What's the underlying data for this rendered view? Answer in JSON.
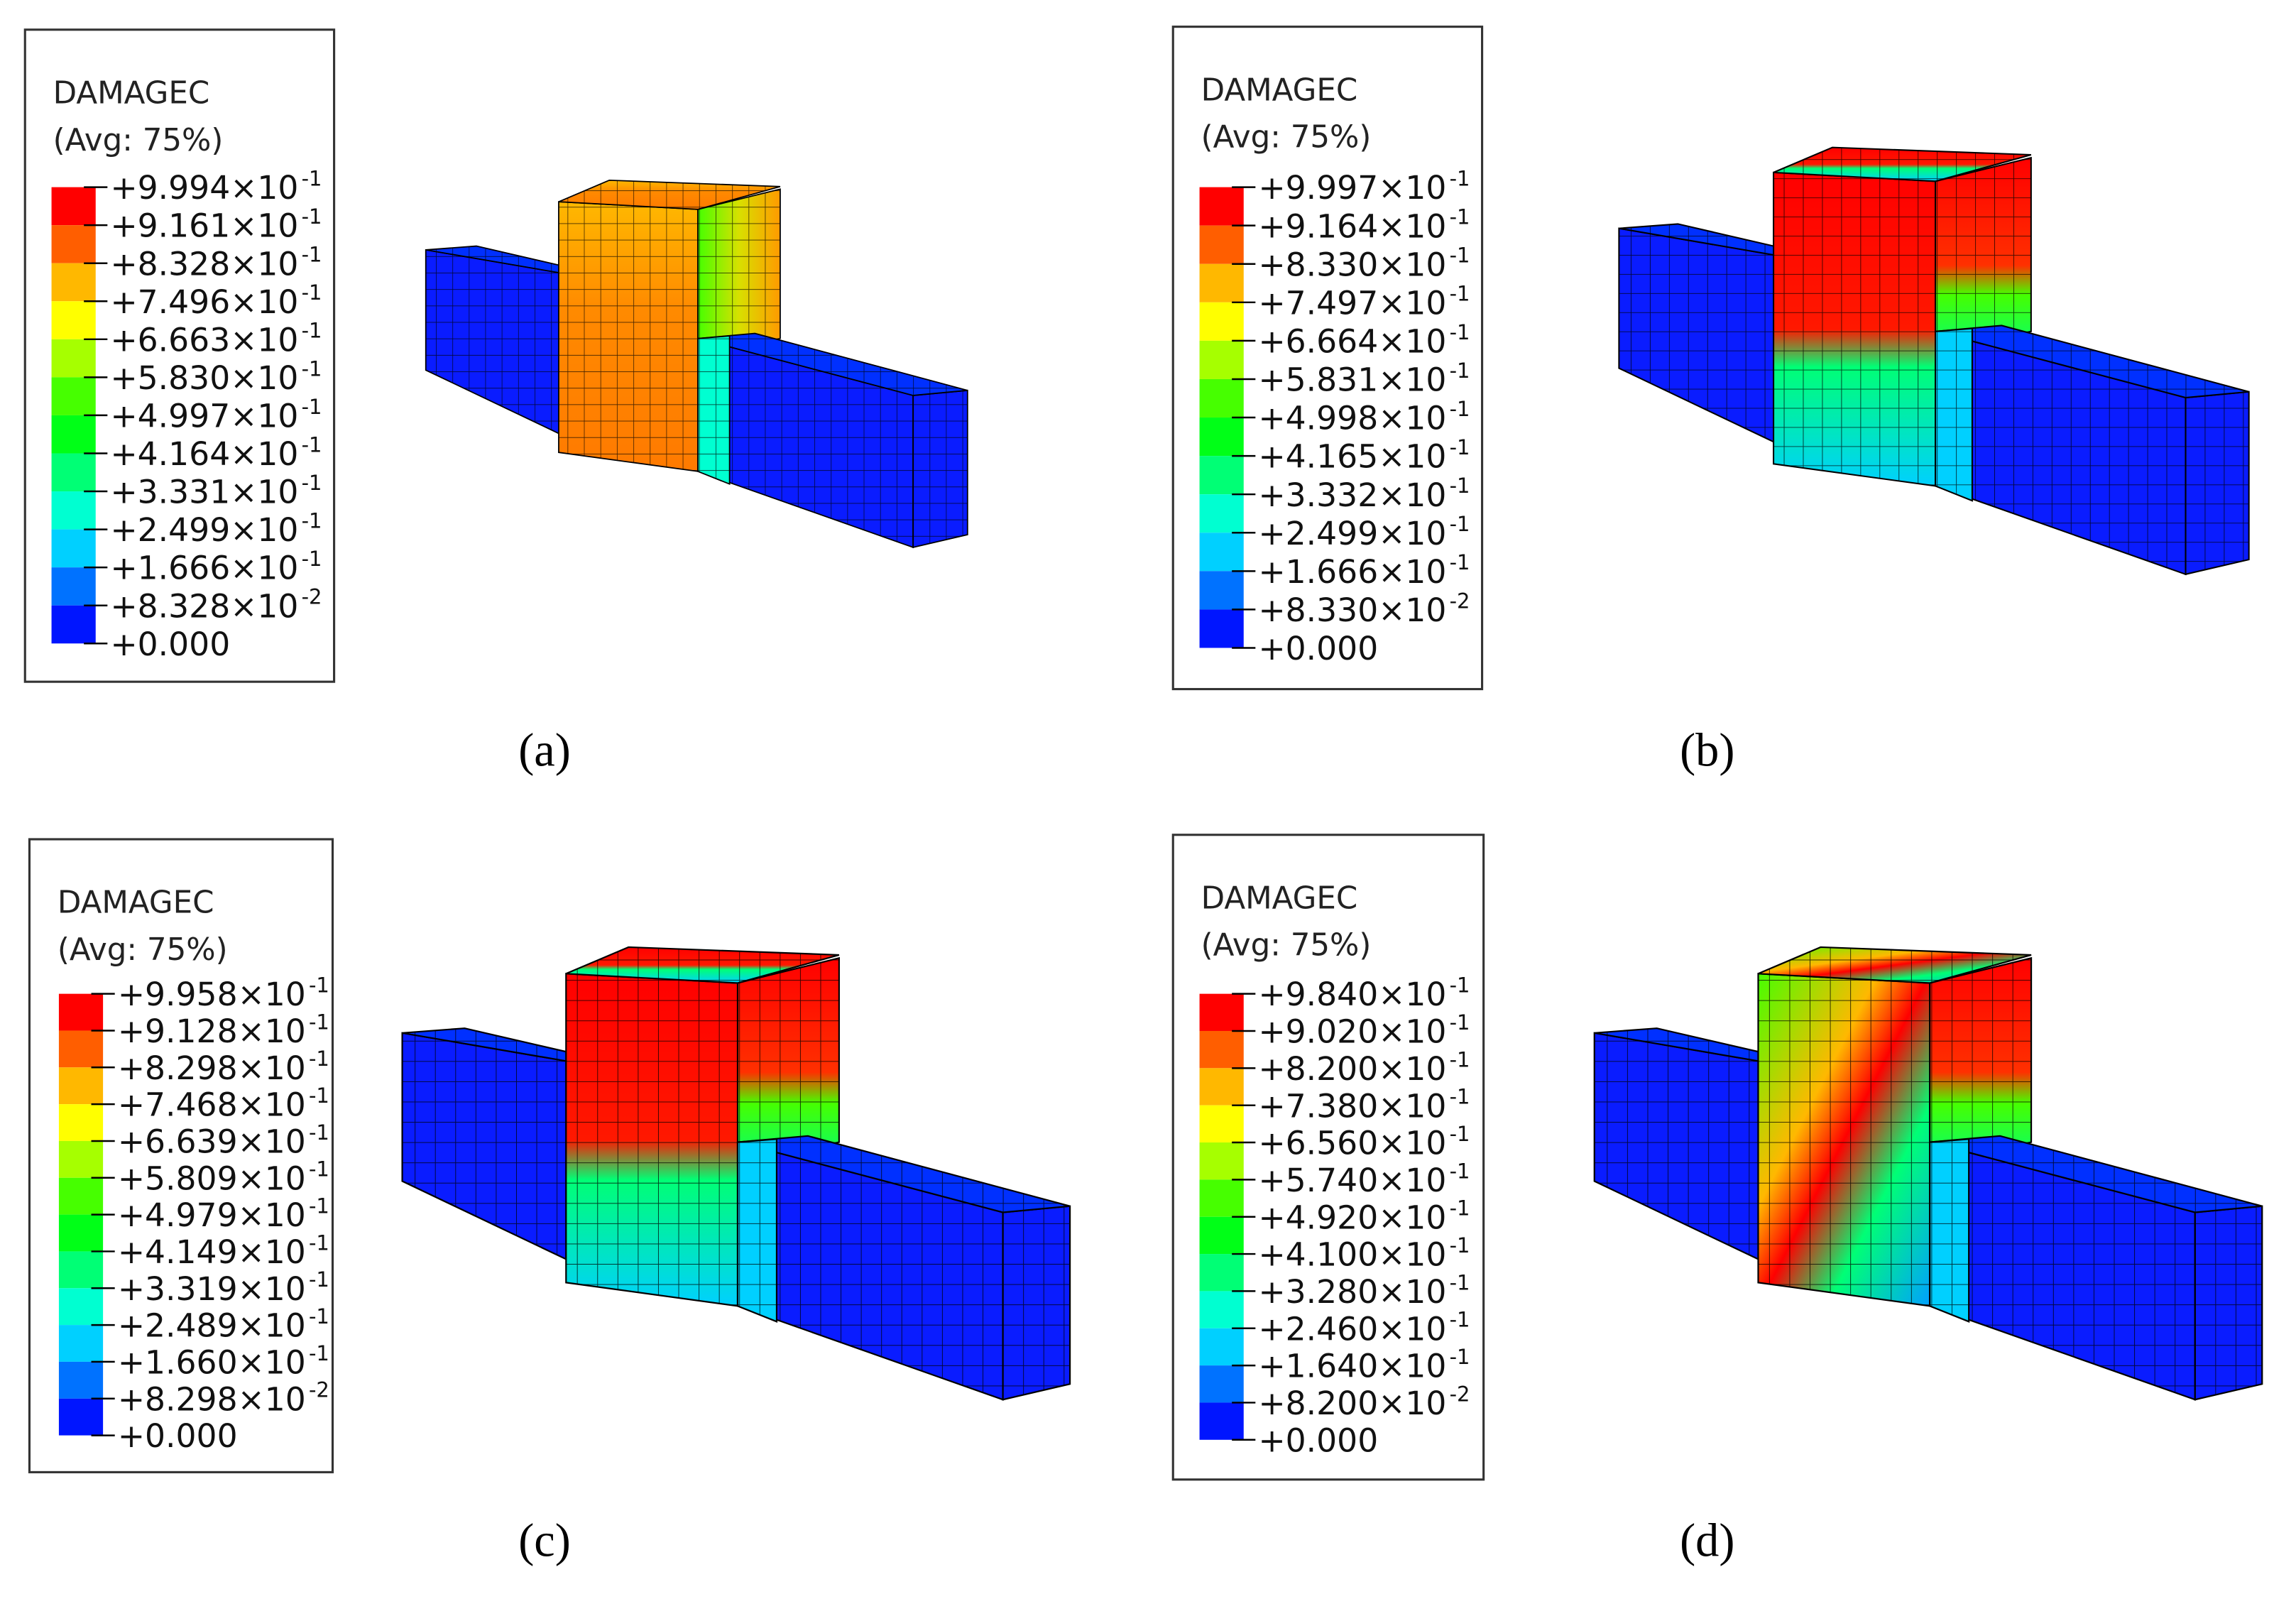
{
  "legend_colors": [
    "#ff0000",
    "#ff5e00",
    "#ffb800",
    "#ffff00",
    "#a6ff00",
    "#46ff00",
    "#00ff17",
    "#00ff75",
    "#00ffd1",
    "#00d0ff",
    "#0072ff",
    "#0015ff"
  ],
  "panels": [
    {
      "legend": {
        "title": "DAMAGEC",
        "subtitle": "(Avg: 75%)",
        "labels": [
          {
            "base": "+9.994×10",
            "exp": "-1"
          },
          {
            "base": "+9.161×10",
            "exp": "-1"
          },
          {
            "base": "+8.328×10",
            "exp": "-1"
          },
          {
            "base": "+7.496×10",
            "exp": "-1"
          },
          {
            "base": "+6.663×10",
            "exp": "-1"
          },
          {
            "base": "+5.830×10",
            "exp": "-1"
          },
          {
            "base": "+4.997×10",
            "exp": "-1"
          },
          {
            "base": "+4.164×10",
            "exp": "-1"
          },
          {
            "base": "+3.331×10",
            "exp": "-1"
          },
          {
            "base": "+2.499×10",
            "exp": "-1"
          },
          {
            "base": "+1.666×10",
            "exp": "-1"
          },
          {
            "base": "+8.328×10",
            "exp": "-2"
          },
          {
            "base": "+0.000"
          }
        ]
      },
      "caption": "(a)"
    },
    {
      "legend": {
        "title": "DAMAGEC",
        "subtitle": "(Avg: 75%)",
        "labels": [
          {
            "base": "+9.997×10",
            "exp": "-1"
          },
          {
            "base": "+9.164×10",
            "exp": "-1"
          },
          {
            "base": "+8.330×10",
            "exp": "-1"
          },
          {
            "base": "+7.497×10",
            "exp": "-1"
          },
          {
            "base": "+6.664×10",
            "exp": "-1"
          },
          {
            "base": "+5.831×10",
            "exp": "-1"
          },
          {
            "base": "+4.998×10",
            "exp": "-1"
          },
          {
            "base": "+4.165×10",
            "exp": "-1"
          },
          {
            "base": "+3.332×10",
            "exp": "-1"
          },
          {
            "base": "+2.499×10",
            "exp": "-1"
          },
          {
            "base": "+1.666×10",
            "exp": "-1"
          },
          {
            "base": "+8.330×10",
            "exp": "-2"
          },
          {
            "base": "+0.000"
          }
        ]
      },
      "caption": "(b)"
    },
    {
      "legend": {
        "title": "DAMAGEC",
        "subtitle": "(Avg: 75%)",
        "labels": [
          {
            "base": "+9.958×10",
            "exp": "-1"
          },
          {
            "base": "+9.128×10",
            "exp": "-1"
          },
          {
            "base": "+8.298×10",
            "exp": "-1"
          },
          {
            "base": "+7.468×10",
            "exp": "-1"
          },
          {
            "base": "+6.639×10",
            "exp": "-1"
          },
          {
            "base": "+5.809×10",
            "exp": "-1"
          },
          {
            "base": "+4.979×10",
            "exp": "-1"
          },
          {
            "base": "+4.149×10",
            "exp": "-1"
          },
          {
            "base": "+3.319×10",
            "exp": "-1"
          },
          {
            "base": "+2.489×10",
            "exp": "-1"
          },
          {
            "base": "+1.660×10",
            "exp": "-1"
          },
          {
            "base": "+8.298×10",
            "exp": "-2"
          },
          {
            "base": "+0.000"
          }
        ]
      },
      "caption": "(c)"
    },
    {
      "legend": {
        "title": "DAMAGEC",
        "subtitle": "(Avg: 75%)",
        "labels": [
          {
            "base": "+9.840×10",
            "exp": "-1"
          },
          {
            "base": "+9.020×10",
            "exp": "-1"
          },
          {
            "base": "+8.200×10",
            "exp": "-1"
          },
          {
            "base": "+7.380×10",
            "exp": "-1"
          },
          {
            "base": "+6.560×10",
            "exp": "-1"
          },
          {
            "base": "+5.740×10",
            "exp": "-1"
          },
          {
            "base": "+4.920×10",
            "exp": "-1"
          },
          {
            "base": "+4.100×10",
            "exp": "-1"
          },
          {
            "base": "+3.280×10",
            "exp": "-1"
          },
          {
            "base": "+2.460×10",
            "exp": "-1"
          },
          {
            "base": "+1.640×10",
            "exp": "-1"
          },
          {
            "base": "+8.200×10",
            "exp": "-2"
          },
          {
            "base": "+0.000"
          }
        ]
      },
      "caption": "(d)"
    }
  ]
}
